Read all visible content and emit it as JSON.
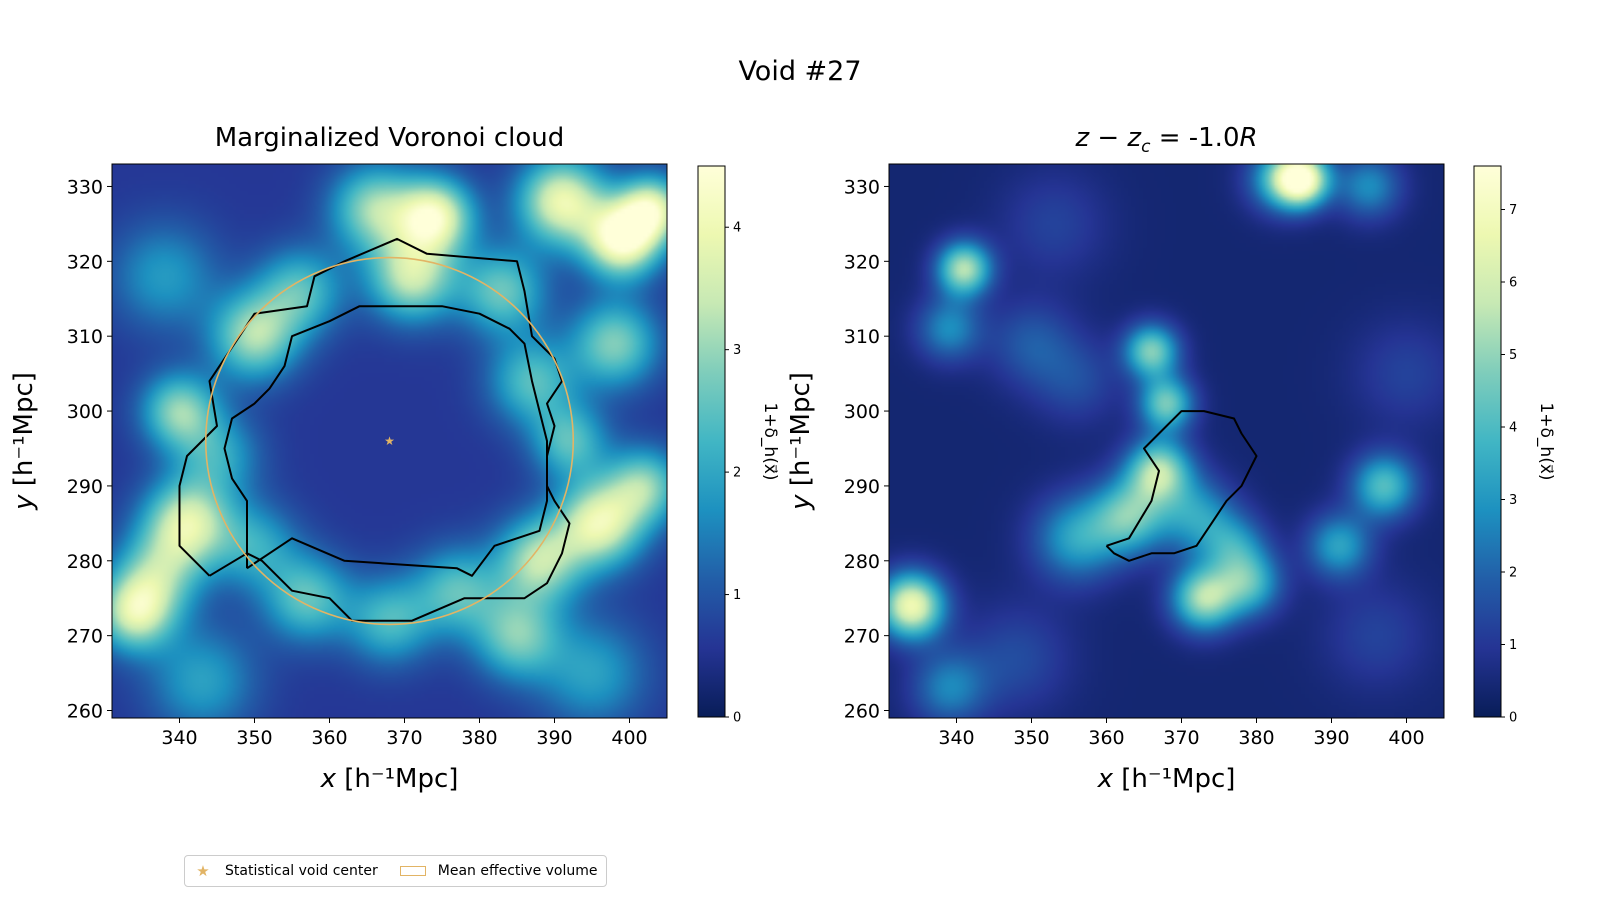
{
  "figure": {
    "title": "Void #27",
    "legend": [
      {
        "label": "Statistical void center",
        "marker": "star",
        "color": "#e2b465"
      },
      {
        "label": "Mean effective volume",
        "marker": "patch",
        "color": "#e2b465"
      }
    ],
    "colormap": "YlGnBu",
    "contour_color": "#000000"
  },
  "chart_data": [
    {
      "type": "heatmap",
      "title": "Marginalized Voronoi cloud",
      "xlabel": "x [h⁻¹Mpc]",
      "ylabel": "y [h⁻¹Mpc]",
      "xlim": [
        331,
        405
      ],
      "ylim": [
        259,
        333
      ],
      "xticks": [
        340,
        350,
        360,
        370,
        380,
        390,
        400
      ],
      "yticks": [
        260,
        270,
        280,
        290,
        300,
        310,
        320,
        330
      ],
      "colorbar": {
        "label": "1+δ_h(x⃗)",
        "min": 0,
        "max": 4.5,
        "ticks": [
          0,
          1,
          2,
          3,
          4
        ]
      },
      "background": 0.6,
      "blobs": [
        {
          "x": 340,
          "y": 300,
          "v": 2.5,
          "s": 3.5
        },
        {
          "x": 341,
          "y": 285,
          "v": 3.2,
          "s": 4
        },
        {
          "x": 334,
          "y": 273,
          "v": 3.0,
          "s": 3.5
        },
        {
          "x": 337,
          "y": 278,
          "v": 2.2,
          "s": 4
        },
        {
          "x": 350,
          "y": 310,
          "v": 2.7,
          "s": 4
        },
        {
          "x": 356,
          "y": 316,
          "v": 2.0,
          "s": 4
        },
        {
          "x": 371,
          "y": 318,
          "v": 3.0,
          "s": 4
        },
        {
          "x": 374,
          "y": 326,
          "v": 3.6,
          "s": 3.5
        },
        {
          "x": 366,
          "y": 327,
          "v": 2.6,
          "s": 4
        },
        {
          "x": 391,
          "y": 328,
          "v": 3.5,
          "s": 4
        },
        {
          "x": 399,
          "y": 323,
          "v": 4.1,
          "s": 3.5
        },
        {
          "x": 403,
          "y": 327,
          "v": 3.2,
          "s": 3
        },
        {
          "x": 383,
          "y": 316,
          "v": 2.2,
          "s": 4
        },
        {
          "x": 387,
          "y": 304,
          "v": 2.0,
          "s": 4
        },
        {
          "x": 398,
          "y": 309,
          "v": 2.4,
          "s": 4
        },
        {
          "x": 392,
          "y": 296,
          "v": 2.0,
          "s": 3.5
        },
        {
          "x": 396,
          "y": 285,
          "v": 3.4,
          "s": 4
        },
        {
          "x": 402,
          "y": 290,
          "v": 2.4,
          "s": 3.5
        },
        {
          "x": 388,
          "y": 280,
          "v": 2.8,
          "s": 4
        },
        {
          "x": 377,
          "y": 276,
          "v": 2.0,
          "s": 4
        },
        {
          "x": 368,
          "y": 272,
          "v": 1.9,
          "s": 4
        },
        {
          "x": 385,
          "y": 270,
          "v": 2.3,
          "s": 4
        },
        {
          "x": 357,
          "y": 275,
          "v": 2.1,
          "s": 4
        },
        {
          "x": 350,
          "y": 282,
          "v": 1.6,
          "s": 4
        },
        {
          "x": 345,
          "y": 294,
          "v": 1.6,
          "s": 4
        },
        {
          "x": 338,
          "y": 318,
          "v": 1.4,
          "s": 5
        },
        {
          "x": 343,
          "y": 264,
          "v": 1.5,
          "s": 5
        },
        {
          "x": 395,
          "y": 265,
          "v": 1.5,
          "s": 5
        }
      ],
      "contours": [
        [
          [
            344,
            278
          ],
          [
            340,
            282
          ],
          [
            340,
            290
          ],
          [
            341,
            294
          ],
          [
            345,
            298
          ],
          [
            344,
            304
          ],
          [
            350,
            313
          ],
          [
            357,
            314
          ],
          [
            358,
            318
          ],
          [
            362,
            320
          ],
          [
            369,
            323
          ],
          [
            373,
            321
          ],
          [
            385,
            320
          ],
          [
            386,
            316
          ],
          [
            387,
            310
          ],
          [
            390,
            307
          ],
          [
            391,
            304
          ],
          [
            389,
            301
          ],
          [
            390,
            298
          ],
          [
            389,
            294
          ],
          [
            389,
            290
          ],
          [
            390,
            288
          ],
          [
            392,
            285
          ],
          [
            391,
            281
          ],
          [
            389,
            277
          ],
          [
            386,
            275
          ],
          [
            383,
            275
          ],
          [
            378,
            275
          ],
          [
            371,
            272
          ],
          [
            363,
            272
          ],
          [
            360,
            275
          ],
          [
            355,
            276
          ],
          [
            351,
            280
          ],
          [
            349,
            281
          ],
          [
            344,
            278
          ]
        ],
        [
          [
            349,
            279
          ],
          [
            352,
            281
          ],
          [
            355,
            283
          ],
          [
            362,
            280
          ],
          [
            377,
            279
          ],
          [
            379,
            278
          ],
          [
            382,
            282
          ],
          [
            388,
            284
          ],
          [
            389,
            288
          ],
          [
            389,
            296
          ],
          [
            388,
            300
          ],
          [
            387,
            304
          ],
          [
            386,
            309
          ],
          [
            384,
            311
          ],
          [
            380,
            313
          ],
          [
            375,
            314
          ],
          [
            370,
            314
          ],
          [
            364,
            314
          ],
          [
            360,
            312
          ],
          [
            355,
            310
          ],
          [
            354,
            306
          ],
          [
            352,
            303
          ],
          [
            350,
            301
          ],
          [
            347,
            299
          ],
          [
            346,
            295
          ],
          [
            347,
            291
          ],
          [
            349,
            288
          ],
          [
            349,
            279
          ]
        ]
      ],
      "circle": {
        "center": [
          368,
          296
        ],
        "radius": 24.5
      },
      "star": [
        368,
        296
      ]
    },
    {
      "type": "heatmap",
      "title": "z − z_c = -1.0R",
      "xlabel": "x [h⁻¹Mpc]",
      "ylabel": "y [h⁻¹Mpc]",
      "xlim": [
        331,
        405
      ],
      "ylim": [
        259,
        333
      ],
      "xticks": [
        340,
        350,
        360,
        370,
        380,
        390,
        400
      ],
      "yticks": [
        260,
        270,
        280,
        290,
        300,
        310,
        320,
        330
      ],
      "colorbar": {
        "label": "1+δ_h(x⃗)",
        "min": 0,
        "max": 7.6,
        "ticks": [
          0,
          1,
          2,
          3,
          4,
          5,
          6,
          7
        ]
      },
      "background": 0.4,
      "blobs": [
        {
          "x": 341,
          "y": 319,
          "v": 5.2,
          "s": 2.5
        },
        {
          "x": 339,
          "y": 311,
          "v": 2.5,
          "s": 3
        },
        {
          "x": 334,
          "y": 274,
          "v": 6.5,
          "s": 3
        },
        {
          "x": 339,
          "y": 263,
          "v": 2.3,
          "s": 3.5
        },
        {
          "x": 366,
          "y": 308,
          "v": 4.5,
          "s": 2.5
        },
        {
          "x": 368,
          "y": 301,
          "v": 4.3,
          "s": 2.5
        },
        {
          "x": 367,
          "y": 292,
          "v": 5.0,
          "s": 3
        },
        {
          "x": 363,
          "y": 286,
          "v": 4.0,
          "s": 3.5
        },
        {
          "x": 356,
          "y": 283,
          "v": 3.0,
          "s": 4
        },
        {
          "x": 372,
          "y": 286,
          "v": 2.8,
          "s": 3.5
        },
        {
          "x": 377,
          "y": 282,
          "v": 2.5,
          "s": 3
        },
        {
          "x": 373,
          "y": 275,
          "v": 5.0,
          "s": 3
        },
        {
          "x": 379,
          "y": 277,
          "v": 3.5,
          "s": 3
        },
        {
          "x": 386,
          "y": 331,
          "v": 7.0,
          "s": 2.5
        },
        {
          "x": 383,
          "y": 331,
          "v": 3.0,
          "s": 3
        },
        {
          "x": 395,
          "y": 330,
          "v": 2.5,
          "s": 3
        },
        {
          "x": 397,
          "y": 290,
          "v": 3.8,
          "s": 3
        },
        {
          "x": 391,
          "y": 282,
          "v": 3.0,
          "s": 3
        },
        {
          "x": 350,
          "y": 309,
          "v": 1.5,
          "s": 4
        },
        {
          "x": 356,
          "y": 304,
          "v": 1.2,
          "s": 4
        },
        {
          "x": 348,
          "y": 267,
          "v": 1.2,
          "s": 5
        },
        {
          "x": 396,
          "y": 270,
          "v": 1.0,
          "s": 5
        },
        {
          "x": 400,
          "y": 305,
          "v": 1.0,
          "s": 5
        },
        {
          "x": 353,
          "y": 325,
          "v": 1.0,
          "s": 5
        }
      ],
      "contours": [
        [
          [
            360,
            282
          ],
          [
            363,
            283
          ],
          [
            366,
            288
          ],
          [
            367,
            292
          ],
          [
            365,
            295
          ],
          [
            367,
            297
          ],
          [
            370,
            300
          ],
          [
            373,
            300
          ],
          [
            377,
            299
          ],
          [
            378,
            297
          ],
          [
            380,
            294
          ],
          [
            379,
            292
          ],
          [
            378,
            290
          ],
          [
            376,
            288
          ],
          [
            374,
            285
          ],
          [
            372,
            282
          ],
          [
            369,
            281
          ],
          [
            366,
            281
          ],
          [
            363,
            280
          ],
          [
            361,
            281
          ],
          [
            360,
            282
          ]
        ]
      ]
    }
  ]
}
